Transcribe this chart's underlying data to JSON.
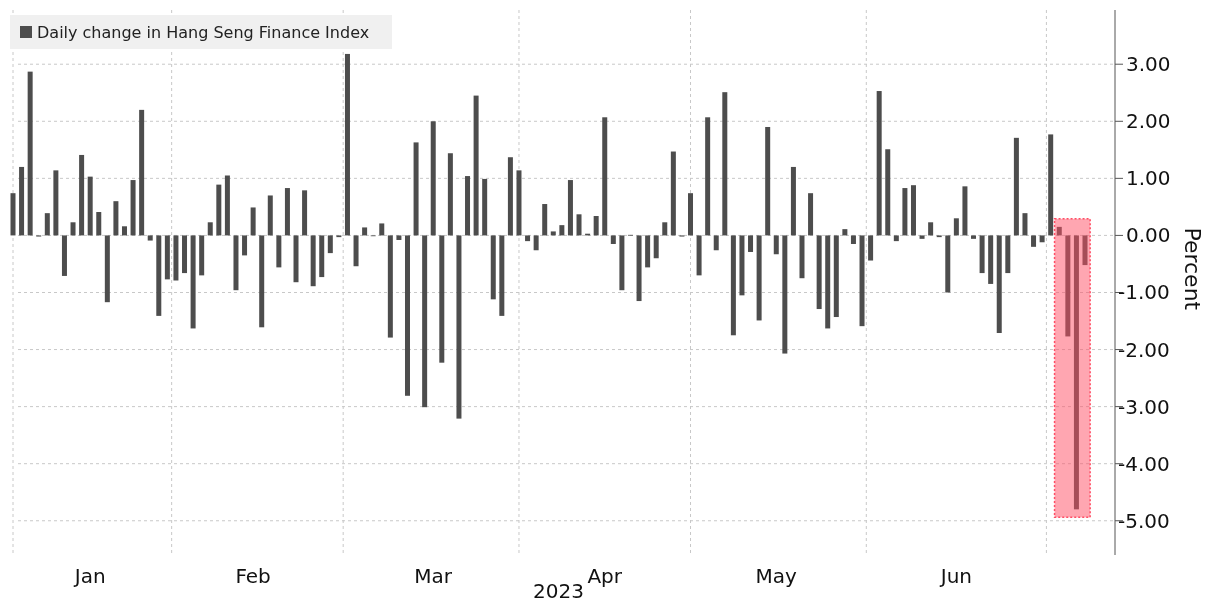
{
  "chart_data": {
    "type": "bar",
    "categories": [
      null,
      null,
      null,
      null,
      null,
      null,
      null,
      null,
      null,
      "Jan",
      null,
      null,
      null,
      null,
      null,
      null,
      null,
      null,
      null,
      null,
      null,
      null,
      null,
      null,
      null,
      null,
      null,
      null,
      "Feb",
      null,
      null,
      null,
      null,
      null,
      null,
      null,
      null,
      null,
      null,
      null,
      null,
      null,
      null,
      null,
      null,
      null,
      null,
      null,
      null,
      "Mar",
      null,
      null,
      null,
      null,
      null,
      null,
      null,
      null,
      null,
      null,
      null,
      null,
      null,
      null,
      null,
      null,
      null,
      null,
      null,
      "Apr",
      null,
      null,
      null,
      null,
      null,
      null,
      null,
      null,
      null,
      null,
      null,
      null,
      null,
      null,
      null,
      null,
      null,
      null,
      null,
      "May",
      null,
      null,
      null,
      null,
      null,
      null,
      null,
      null,
      null,
      null,
      null,
      null,
      null,
      null,
      null,
      null,
      null,
      null,
      null,
      null,
      "Jun",
      null,
      null,
      null,
      null,
      null,
      null,
      null,
      null,
      null,
      null,
      null,
      null,
      null,
      null,
      null
    ],
    "series": [
      {
        "name": "Daily change in Hang Seng Finance Index",
        "color": "#4d4d4d",
        "values": [
          0.74,
          1.2,
          2.87,
          -0.02,
          0.39,
          1.14,
          -0.71,
          0.23,
          1.41,
          1.03,
          0.41,
          -1.17,
          0.6,
          0.16,
          0.97,
          2.2,
          -0.09,
          -1.41,
          -0.77,
          -0.79,
          -0.66,
          -1.63,
          -0.7,
          0.23,
          0.89,
          1.05,
          -0.96,
          -0.35,
          0.49,
          -1.61,
          0.7,
          -0.56,
          0.83,
          -0.82,
          0.79,
          -0.89,
          -0.73,
          -0.31,
          -0.03,
          3.18,
          -0.54,
          0.14,
          -0.01,
          0.21,
          -1.79,
          -0.08,
          -2.81,
          1.63,
          -3.01,
          2.0,
          -2.23,
          1.44,
          -3.21,
          1.04,
          2.45,
          0.99,
          -1.12,
          -1.41,
          1.37,
          1.14,
          -0.1,
          -0.26,
          0.55,
          0.07,
          0.18,
          0.97,
          0.37,
          0.03,
          0.34,
          2.07,
          -0.15,
          -0.96,
          0.01,
          -1.15,
          -0.56,
          -0.4,
          0.23,
          1.47,
          -0.02,
          0.74,
          -0.7,
          2.07,
          -0.26,
          2.51,
          -1.75,
          -1.05,
          -0.29,
          -1.49,
          1.9,
          -0.33,
          -2.07,
          1.2,
          -0.75,
          0.74,
          -1.29,
          -1.63,
          -1.43,
          0.11,
          -0.15,
          -1.59,
          -0.44,
          2.53,
          1.51,
          -0.1,
          0.83,
          0.88,
          -0.06,
          0.23,
          -0.03,
          -1.0,
          0.3,
          0.86,
          -0.06,
          -0.66,
          -0.85,
          -1.71,
          -0.66,
          1.71,
          0.39,
          -0.2,
          -0.12,
          1.77,
          0.15,
          -1.77,
          -4.8,
          -0.52
        ]
      }
    ],
    "xlabel": "2023",
    "ylabel": "Percent",
    "ylim": [
      -5.6,
      3.95
    ],
    "yticks": [
      {
        "value": -5,
        "label": "-5.00"
      },
      {
        "value": -4,
        "label": "-4.00"
      },
      {
        "value": -3,
        "label": "-3.00"
      },
      {
        "value": -2,
        "label": "-2.00"
      },
      {
        "value": -1,
        "label": "-1.00"
      },
      {
        "value": 0,
        "label": "0.00"
      },
      {
        "value": 1,
        "label": "1.00"
      },
      {
        "value": 2,
        "label": "2.00"
      },
      {
        "value": 3,
        "label": "3.00"
      }
    ],
    "grid": true,
    "legend": "top left"
  }
}
